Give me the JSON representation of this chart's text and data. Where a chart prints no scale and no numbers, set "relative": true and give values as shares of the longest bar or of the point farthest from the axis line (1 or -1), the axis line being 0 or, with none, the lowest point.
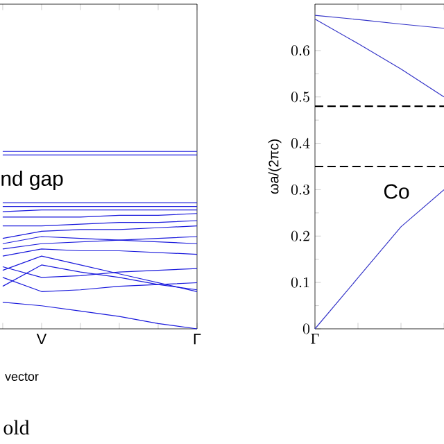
{
  "chart_data": [
    {
      "type": "line",
      "relative": true,
      "categories": [
        null,
        "V",
        null,
        null,
        null,
        "Γ"
      ],
      "xlabel": "vector",
      "annotations": [
        "nd gap",
        "old"
      ],
      "series": [
        {
          "color": "#1a1adc",
          "values": [
            1.0,
            1.0,
            1.0,
            1.0,
            1.0,
            1.0
          ]
        },
        {
          "color": "#1a1adc",
          "values": [
            0.98,
            0.98,
            0.98,
            0.98,
            0.98,
            0.98
          ]
        },
        {
          "color": "#1a1adc",
          "values": [
            0.71,
            0.71,
            0.71,
            0.71,
            0.71,
            0.71
          ]
        },
        {
          "color": "#1a1adc",
          "values": [
            0.69,
            0.69,
            0.69,
            0.69,
            0.69,
            0.69
          ]
        },
        {
          "color": "#1a1adc",
          "values": [
            0.66,
            0.67,
            0.67,
            0.67,
            0.67,
            0.67
          ]
        },
        {
          "color": "#1a1adc",
          "values": [
            0.63,
            0.63,
            0.63,
            0.64,
            0.64,
            0.65
          ]
        },
        {
          "color": "#1a1adc",
          "values": [
            0.58,
            0.58,
            0.59,
            0.6,
            0.6,
            0.61
          ]
        },
        {
          "color": "#1a1adc",
          "values": [
            0.51,
            0.55,
            0.56,
            0.56,
            0.57,
            0.58
          ]
        },
        {
          "color": "#1a1adc",
          "values": [
            0.48,
            0.52,
            0.51,
            0.5,
            0.49,
            0.48
          ]
        },
        {
          "color": "#1a1adc",
          "values": [
            0.45,
            0.48,
            0.49,
            0.5,
            0.51,
            0.52
          ]
        },
        {
          "color": "#1a1adc",
          "values": [
            0.41,
            0.45,
            0.44,
            0.44,
            0.43,
            0.42
          ]
        },
        {
          "color": "#1a1adc",
          "values": [
            0.35,
            0.29,
            0.3,
            0.32,
            0.33,
            0.34
          ]
        },
        {
          "color": "#1a1adc",
          "values": [
            0.29,
            0.21,
            0.22,
            0.24,
            0.25,
            0.26
          ]
        },
        {
          "color": "#1a1adc",
          "values": [
            0.24,
            0.36,
            0.32,
            0.29,
            0.25,
            0.22
          ]
        },
        {
          "color": "#1a1adc",
          "values": [
            0.15,
            0.13,
            0.1,
            0.07,
            0.03,
            0.0
          ]
        },
        {
          "color": "#1a1adc",
          "values": [
            0.33,
            0.41,
            0.36,
            0.31,
            0.26,
            0.21
          ]
        }
      ]
    },
    {
      "type": "line",
      "categories": [
        "Γ",
        null,
        null,
        null
      ],
      "ylim": [
        0,
        0.7
      ],
      "yticks": [
        0,
        0.1,
        0.2,
        0.3,
        0.4,
        0.5,
        0.6
      ],
      "ylabel": "ωa/(2πc)",
      "annotations": [
        "Co"
      ],
      "ref_lines": [
        {
          "axis": "y",
          "value": 0.48,
          "color": "#000000",
          "line_style": "dashed"
        },
        {
          "axis": "y",
          "value": 0.35,
          "color": "#000000",
          "line_style": "dashed"
        }
      ],
      "series": [
        {
          "color": "#3434c8",
          "values": [
            0,
            0.11,
            0.22,
            0.3
          ]
        },
        {
          "color": "#3434c8",
          "values": [
            0.668,
            0.615,
            0.56,
            0.5
          ]
        },
        {
          "color": "#3434c8",
          "values": [
            0.676,
            0.667,
            0.657,
            0.648
          ]
        }
      ]
    }
  ]
}
